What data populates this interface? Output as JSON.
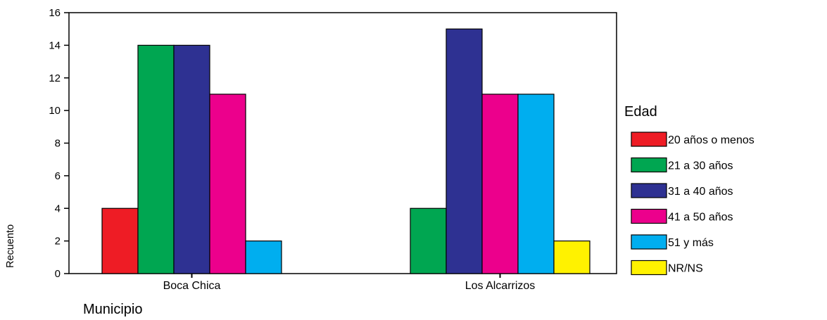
{
  "chart_data": {
    "type": "bar",
    "categories": [
      "Boca Chica",
      "Los Alcarrizos"
    ],
    "series": [
      {
        "name": "20 años o menos",
        "color": "#ee1c25",
        "values": [
          4,
          0
        ]
      },
      {
        "name": "21 a 30 años",
        "color": "#00a651",
        "values": [
          14,
          4
        ]
      },
      {
        "name": "31 a 40 años",
        "color": "#2e3192",
        "values": [
          14,
          15
        ]
      },
      {
        "name": "41 a 50 años",
        "color": "#ec008c",
        "values": [
          11,
          11
        ]
      },
      {
        "name": "51 y más",
        "color": "#00aeef",
        "values": [
          2,
          11
        ]
      },
      {
        "name": "NR/NS",
        "color": "#fff200",
        "values": [
          0,
          2
        ]
      }
    ],
    "xlabel": "Municipio",
    "ylabel": "Recuento",
    "ylim": [
      0,
      16
    ],
    "yticks": [
      0,
      2,
      4,
      6,
      8,
      10,
      12,
      14,
      16
    ],
    "legend_title": "Edad",
    "legend_position": "right",
    "grid": false
  }
}
